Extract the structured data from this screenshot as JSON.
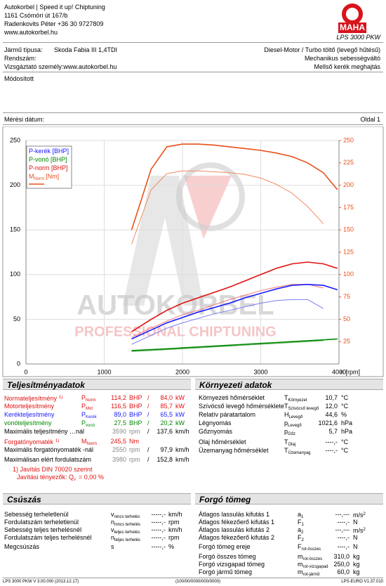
{
  "header": {
    "company_lines": [
      "Autokorbel | Speed it up! Chiptuning",
      "1161 Csömöri út 167/b",
      "Radenkovits Péter +36 30 9727809",
      "www.autokorbel.hu"
    ],
    "logo": "MAHA",
    "product": "LPS 3000 PKW"
  },
  "vehicle": {
    "left": [
      {
        "label": "Jármű típusa:",
        "value": "Skoda Fabia III 1,4TDI"
      },
      {
        "label": "Rendszám:",
        "value": ""
      },
      {
        "label": "Vizsgáztató személy:www.autokorbel.hu",
        "value": ""
      }
    ],
    "right": [
      "Diesel-Motor / Turbo töltő (levegő hűtésű)",
      "Mechanikus sebességváltó",
      "Mellső kerék meghajtás"
    ],
    "note": "Módosított",
    "date_label": "Mérési dátum:",
    "page": "Oldal 1"
  },
  "chart_data": {
    "type": "line",
    "x_label": "n [rpm]",
    "watermark": [
      "AUTOKORBEL",
      "PROFESSIONAL CHIPTUNING"
    ],
    "x": [
      1350,
      1600,
      1800,
      2000,
      2200,
      2400,
      2600,
      2800,
      3000,
      3200,
      3400,
      3600,
      3800,
      3980
    ],
    "xlim": [
      0,
      4000
    ],
    "xticks": [
      0,
      1000,
      2000,
      3000,
      4000
    ],
    "ylim": [
      0,
      250
    ],
    "yticks": [
      0,
      50,
      100,
      150,
      200,
      250
    ],
    "y2lim": [
      0,
      250
    ],
    "y2ticks": [
      25,
      50,
      75,
      100,
      125,
      150,
      175,
      200,
      225,
      250
    ],
    "y2_color": "#e8501a",
    "grid": true,
    "series": [
      {
        "name": "P-kerék [BHP]",
        "color": "#1a1aff",
        "values": [
          28,
          38,
          46,
          52,
          58,
          63,
          68,
          74,
          79,
          84,
          88,
          89,
          88,
          83
        ]
      },
      {
        "name": "P-vonó [BHP]",
        "color": "#008800",
        "values": [
          15,
          16,
          17,
          18,
          19,
          20,
          21,
          22,
          23,
          24,
          25,
          26,
          27,
          28
        ]
      },
      {
        "name": "P-norm [BHP]",
        "color": "#e01010",
        "values": [
          36,
          50,
          60,
          68,
          74,
          80,
          86,
          93,
          100,
          107,
          112,
          114,
          112,
          107
        ]
      },
      {
        "name": "M",
        "name_sub": "Norm",
        "name_unit": "[Nm]",
        "color": "#e8501a",
        "axis": "y2",
        "values": [
          150,
          218,
          243,
          246,
          246,
          245,
          243,
          241,
          239,
          236,
          232,
          225,
          214,
          195
        ]
      }
    ],
    "comparison": [
      {
        "color": "#7f7ff0",
        "values": [
          22,
          32,
          40,
          46,
          51,
          56,
          60,
          64,
          68,
          71,
          72,
          72,
          62,
          null
        ]
      },
      {
        "color": "#60b060",
        "values": [
          14,
          15,
          16,
          17,
          18,
          19,
          20,
          21,
          22,
          23,
          24,
          25,
          26,
          null
        ]
      },
      {
        "color": "#f07878",
        "values": [
          30,
          40,
          48,
          55,
          60,
          66,
          72,
          77,
          82,
          86,
          89,
          89,
          85,
          null
        ]
      },
      {
        "color": "#f08a60",
        "axis": "y2",
        "values": [
          134,
          195,
          213,
          216,
          216,
          215,
          214,
          212,
          208,
          201,
          191,
          176,
          157,
          null
        ]
      }
    ]
  },
  "performance": {
    "title": "Teljesítményadatok",
    "rows": [
      {
        "label": "Normateljesítmény",
        "note": "1)",
        "sym": "P",
        "sub": "Norm",
        "v1": "114,2",
        "u1": "BHP",
        "sep": "/",
        "v2": "84,0",
        "u2": "kW",
        "color": "#e01010"
      },
      {
        "label": "Motorteljesítmény",
        "sym": "P",
        "sub": "Mot",
        "v1": "116,5",
        "u1": "BHP",
        "sep": "/",
        "v2": "85,7",
        "u2": "kW",
        "color": "#e01010"
      },
      {
        "label": "Kerékteljesítmény",
        "sym": "P",
        "sub": "Kerék",
        "v1": "89,0",
        "u1": "BHP",
        "sep": "/",
        "v2": "65,5",
        "u2": "kW",
        "color": "#1a1aff"
      },
      {
        "label": "vonóteljesítmény",
        "sym": "P",
        "sub": "vonó",
        "v1": "27,5",
        "u1": "BHP",
        "sep": "/",
        "v2": "20,2",
        "u2": "kW",
        "color": "#008800"
      },
      {
        "label": "Maximális teljesítmény …nál",
        "v1": "3590",
        "u1": "rpm",
        "sep": "/",
        "v2": "137,6",
        "u2": "km/h",
        "color": "#000000",
        "v1_color": "#888888"
      },
      {
        "label": "Forgatónyomaték",
        "note": "1)",
        "sym": "M",
        "sub": "Norm",
        "v1": "245,5",
        "u1": "Nm",
        "color": "#e01010"
      },
      {
        "label": "Maximális forgatónyomaték -nál",
        "v1": "2550",
        "u1": "rpm",
        "sep": "/",
        "v2": "97,9",
        "u2": "km/h",
        "color": "#000000",
        "v1_color": "#888888"
      },
      {
        "label": "Maximálisan elért fordulatszám",
        "v1": "3980",
        "u1": "rpm",
        "sep": "/",
        "v2": "152,8",
        "u2": "km/h",
        "color": "#000000",
        "v1_color": "#888888"
      }
    ],
    "footnote": {
      "line1": "1) Javítás DIN 70020 szerint",
      "text": "Javítási tényezők: Q",
      "sub": "v",
      "rest": "=  0,00 %"
    }
  },
  "environment": {
    "title": "Környezeti adatok",
    "rows": [
      {
        "label": "Környezeti hőmérséklet",
        "sym": "T",
        "sub": "Környezet",
        "v1": "10,7",
        "u1": "°C"
      },
      {
        "label": "Szívócső levegő hőmérséklete",
        "sym": "T",
        "sub": "Szívócső levegő",
        "v1": "12,0",
        "u1": "°C"
      },
      {
        "label": "Relatív páratartalom",
        "sym": "H",
        "sub": "Levegő",
        "v1": "44,6",
        "u1": "%"
      },
      {
        "label": "Légnyomás",
        "sym": "p",
        "sub": "Levegő",
        "v1": "1021,6",
        "u1": "hPa"
      },
      {
        "label": "Gőznyomás",
        "sym": "p",
        "sub": "Gőz",
        "v1": "5,7",
        "u1": "hPa"
      },
      {
        "label": "Olaj hőmérséklet",
        "sym": "T",
        "sub": "Olaj",
        "v1": "----,-",
        "u1": "°C"
      },
      {
        "label": "Üzemanyag hőmérséklet",
        "sym": "T",
        "sub": "Üzemanyag",
        "v1": "----,-",
        "u1": "°C"
      }
    ]
  },
  "slip": {
    "title": "Csúszás",
    "rows": [
      {
        "label": "Sebesség terheletlenül",
        "sym": "v",
        "sub": "nincs terhelés",
        "v1": "-----,-",
        "u1": "km/h"
      },
      {
        "label": "Fordulatszám terheletlenül",
        "sym": "n",
        "sub": "nincs terhelés",
        "v1": "-----,-",
        "u1": "rpm"
      },
      {
        "label": "Sebesség teljes terhelésnél",
        "sym": "v",
        "sub": "teljes terhelés",
        "v1": "-----,-",
        "u1": "km/h"
      },
      {
        "label": "Fordulatszám teljes terhelésnél",
        "sym": "n",
        "sub": "teljes terhelés",
        "v1": "-----,-",
        "u1": "rpm"
      },
      {
        "label": "Megcsúszás",
        "sym": "s",
        "v1": "-----,-",
        "u1": "%"
      }
    ]
  },
  "mass": {
    "title": "Forgó tömeg",
    "rows": [
      {
        "label": "Átlagos lassulás kifutás 1",
        "sym": "a",
        "sub": "1",
        "v1": "---,---",
        "u1": "m/s",
        "u1_sup": "2"
      },
      {
        "label": "Átlagos fékezőerő kifutás 1",
        "sym": "F",
        "sub": "1",
        "v1": "----,-",
        "u1": "N"
      },
      {
        "label": "Átlagos lassulás kifutás 2",
        "sym": "a",
        "sub": "2",
        "v1": "---,---",
        "u1": "m/s",
        "u1_sup": "2"
      },
      {
        "label": "Átlagos fékezőerő kifutás 2",
        "sym": "F",
        "sub": "2",
        "v1": "----,-",
        "u1": "N"
      },
      {
        "label": "Forgó tömeg ereje",
        "sym": "F",
        "sub": "rot-összes",
        "v1": "----,-",
        "u1": "N"
      },
      {
        "label": "Forgó összes tömeg",
        "sym": "m",
        "sub": "rot-összes",
        "v1": "310,0",
        "u1": "kg"
      },
      {
        "label": "Forgó vizsgapad tömeg",
        "sym": "m",
        "sub": "rot-vizsgapad",
        "v1": "250,0",
        "u1": "kg"
      },
      {
        "label": "Forgó jármű tömeg",
        "sym": "m",
        "sub": "rot-jármű",
        "v1": "60,0",
        "u1": "kg"
      }
    ]
  },
  "footer": {
    "left": "LPS 3000 PKW V 3.00.000 (2013.12.17)",
    "center": "(100/00/0000/000/0000)",
    "right": "LPS-EURO V1.37.010"
  }
}
